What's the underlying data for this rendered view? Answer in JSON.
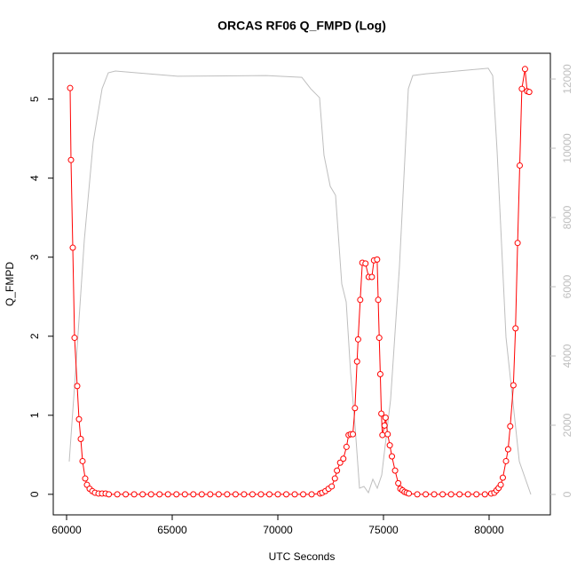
{
  "chart_data": {
    "type": "line",
    "title": "ORCAS RF06 Q_FMPD (Log)",
    "x_label": "UTC Seconds",
    "y_label": "Q_FMPD",
    "xlim": [
      59370,
      82900
    ],
    "xticks": [
      60000,
      65000,
      70000,
      75000,
      80000
    ],
    "ylim": [
      -0.26,
      5.58
    ],
    "yticks": [
      0,
      1,
      2,
      3,
      4,
      5
    ],
    "y2lim": [
      -590,
      12744
    ],
    "y2ticks": [
      0,
      2000,
      4000,
      6000,
      8000,
      10000,
      12000
    ],
    "series": [
      {
        "color": "#ff0000",
        "marker": "circle",
        "x": [
          60168,
          60210,
          60294,
          60378,
          60504,
          60588,
          60672,
          60756,
          60882,
          60966,
          61092,
          61218,
          61344,
          61512,
          61680,
          61848,
          62000,
          62400,
          62800,
          63200,
          63600,
          64000,
          64400,
          64800,
          65200,
          65600,
          66000,
          66400,
          66800,
          67200,
          67600,
          68000,
          68400,
          68800,
          69200,
          69600,
          70000,
          70400,
          70800,
          71200,
          71600,
          72000,
          72100,
          72250,
          72400,
          72550,
          72700,
          72800,
          72950,
          73100,
          73250,
          73350,
          73450,
          73550,
          73650,
          73750,
          73800,
          73900,
          74000,
          74150,
          74300,
          74450,
          74550,
          74700,
          74750,
          74800,
          74850,
          74900,
          74950,
          75050,
          75100,
          75200,
          75300,
          75400,
          75550,
          75700,
          75800,
          75900,
          76000,
          76100,
          76200,
          76600,
          77000,
          77400,
          77800,
          78200,
          78600,
          79000,
          79400,
          79800,
          80100,
          80250,
          80350,
          80450,
          80550,
          80650,
          80800,
          80900,
          81000,
          81150,
          81250,
          81350,
          81450,
          81550,
          81700,
          81800,
          81900
        ],
        "values": [
          5.14,
          4.23,
          3.12,
          1.98,
          1.37,
          0.95,
          0.7,
          0.42,
          0.2,
          0.12,
          0.07,
          0.04,
          0.02,
          0.01,
          0.01,
          0.01,
          0,
          0,
          0,
          0,
          0,
          0,
          0,
          0,
          0,
          0,
          0,
          0,
          0,
          0,
          0,
          0,
          0,
          0,
          0,
          0,
          0,
          0,
          0,
          0,
          0,
          0.01,
          0.02,
          0.04,
          0.07,
          0.1,
          0.2,
          0.3,
          0.4,
          0.45,
          0.6,
          0.75,
          0.76,
          0.76,
          1.09,
          1.68,
          1.96,
          2.46,
          2.93,
          2.92,
          2.75,
          2.75,
          2.96,
          2.97,
          2.46,
          1.98,
          1.52,
          1.02,
          0.75,
          0.87,
          0.97,
          0.76,
          0.62,
          0.48,
          0.3,
          0.14,
          0.07,
          0.05,
          0.03,
          0.02,
          0.01,
          0,
          0,
          0,
          0,
          0,
          0,
          0,
          0,
          0,
          0.01,
          0.02,
          0.05,
          0.08,
          0.12,
          0.21,
          0.42,
          0.57,
          0.86,
          1.38,
          2.1,
          3.18,
          4.16,
          5.13,
          5.38,
          5.1,
          5.09
        ]
      },
      {
        "color": "#bebebe",
        "axis": "y2",
        "x": [
          60126,
          60420,
          60840,
          61261,
          61681,
          61975,
          62311,
          65252,
          69454,
          71135,
          71555,
          71975,
          72185,
          72480,
          72732,
          73026,
          73236,
          73446,
          73656,
          73866,
          74077,
          74287,
          74497,
          74707,
          74917,
          75337,
          75757,
          76177,
          76387,
          77018,
          79959,
          80170,
          80380,
          80800,
          81430,
          81976
        ],
        "values": [
          950,
          3500,
          7350,
          10180,
          11720,
          12180,
          12230,
          12080,
          12100,
          12050,
          11720,
          11460,
          9800,
          8900,
          8640,
          6080,
          5560,
          3510,
          1970,
          180,
          230,
          50,
          440,
          180,
          560,
          2740,
          6590,
          11720,
          12100,
          12150,
          12310,
          12100,
          9900,
          4540,
          950,
          0
        ]
      }
    ]
  }
}
